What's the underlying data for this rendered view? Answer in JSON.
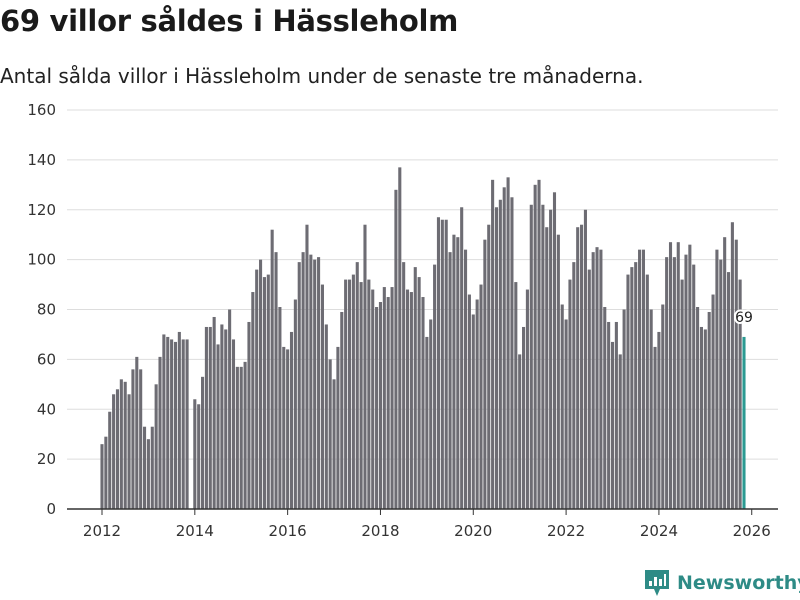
{
  "header": {
    "title": "69 villor såldes i Hässleholm",
    "subtitle": "Antal sålda villor i Hässleholm under de senaste tre månaderna."
  },
  "brand": {
    "name": "Newsworthy",
    "color": "#2e8b86"
  },
  "chart_data": {
    "type": "bar",
    "title": "69 villor såldes i Hässleholm",
    "subtitle": "Antal sålda villor i Hässleholm under de senaste tre månaderna.",
    "xlabel": "",
    "ylabel": "",
    "ylim": [
      0,
      160
    ],
    "yticks": [
      0,
      20,
      40,
      60,
      80,
      100,
      120,
      140,
      160
    ],
    "xticks": [
      "2012",
      "2014",
      "2016",
      "2018",
      "2020",
      "2022",
      "2024",
      "2026"
    ],
    "grid": true,
    "start": "2012-01",
    "end": "2026-01",
    "bar_color": "#6d6c73",
    "highlight_color": "#2b9a92",
    "highlight_label": "69",
    "values": [
      26,
      29,
      39,
      46,
      48,
      52,
      51,
      46,
      56,
      61,
      56,
      33,
      28,
      33,
      50,
      61,
      70,
      69,
      68,
      67,
      71,
      68,
      68,
      null,
      44,
      42,
      53,
      73,
      73,
      77,
      66,
      74,
      72,
      80,
      68,
      57,
      57,
      59,
      75,
      87,
      96,
      100,
      93,
      94,
      112,
      103,
      81,
      65,
      64,
      71,
      84,
      99,
      103,
      114,
      102,
      100,
      101,
      90,
      74,
      60,
      52,
      65,
      79,
      92,
      92,
      94,
      99,
      91,
      114,
      92,
      88,
      81,
      83,
      89,
      85,
      89,
      128,
      137,
      99,
      88,
      87,
      97,
      93,
      85,
      69,
      76,
      98,
      117,
      116,
      116,
      103,
      110,
      109,
      121,
      104,
      86,
      78,
      84,
      90,
      108,
      114,
      132,
      121,
      124,
      129,
      133,
      125,
      91,
      62,
      73,
      88,
      122,
      130,
      132,
      122,
      113,
      120,
      127,
      110,
      82,
      76,
      92,
      99,
      113,
      114,
      120,
      96,
      103,
      105,
      104,
      81,
      75,
      67,
      75,
      62,
      80,
      94,
      97,
      99,
      104,
      104,
      94,
      80,
      65,
      71,
      82,
      101,
      107,
      101,
      107,
      92,
      102,
      106,
      98,
      81,
      73,
      72,
      79,
      86,
      104,
      100,
      109,
      95,
      115,
      108,
      92,
      69
    ]
  }
}
